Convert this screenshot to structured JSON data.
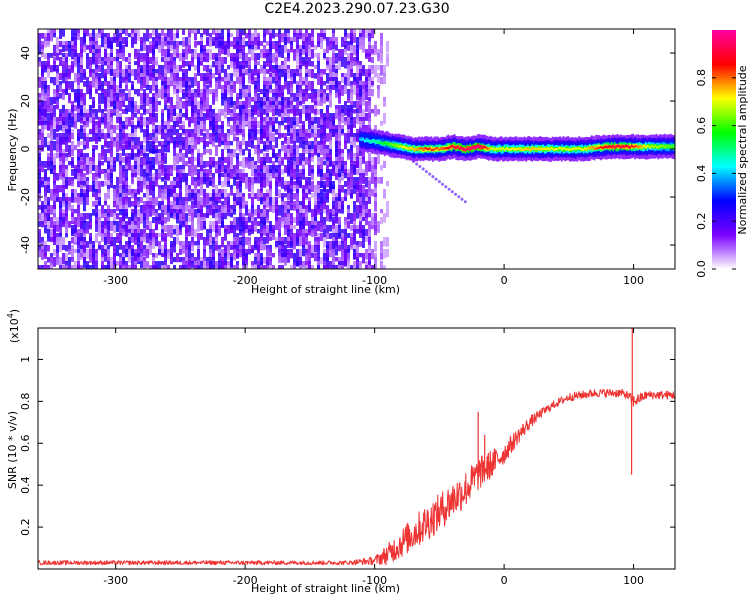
{
  "figure": {
    "title": "C2E4.2023.290.07.23.G30"
  },
  "chart_data": [
    {
      "type": "heatmap",
      "title": "",
      "xlabel": "Height of straight line (km)",
      "ylabel": "Frequency (Hz)",
      "xlim": [
        -360,
        132
      ],
      "ylim": [
        -50,
        50
      ],
      "xticks": [
        -300,
        -200,
        -100,
        0,
        100
      ],
      "yticks": [
        -40,
        -20,
        0,
        20,
        40
      ],
      "colorbar": {
        "label": "Normalized spectral amplitude",
        "range": [
          0,
          1
        ],
        "ticks": [
          0.0,
          0.2,
          0.4,
          0.6,
          0.8
        ],
        "colors": [
          "#ffffff",
          "#7a00ff",
          "#0000ff",
          "#00ffff",
          "#00ff00",
          "#ffff00",
          "#ff0000",
          "#ff00a0"
        ]
      },
      "noise_region": {
        "x": [
          -360,
          -90
        ],
        "y": [
          -50,
          50
        ],
        "amplitude": [
          0.05,
          0.25
        ]
      },
      "signal_ridge": {
        "x": [
          -112,
          -100,
          -90,
          -80,
          -70,
          -60,
          -50,
          -40,
          -30,
          -20,
          -10,
          0,
          20,
          40,
          60,
          80,
          95,
          110,
          132
        ],
        "frequency": [
          4,
          3,
          2,
          1,
          0,
          0,
          0,
          1,
          0,
          1,
          0,
          0,
          0,
          0,
          0,
          1,
          1,
          1,
          1
        ],
        "amplitude": [
          0.4,
          0.5,
          0.6,
          0.7,
          0.75,
          0.85,
          0.8,
          0.9,
          0.95,
          1.0,
          0.7,
          0.7,
          0.75,
          0.7,
          0.7,
          0.9,
          0.9,
          0.7,
          0.6
        ]
      },
      "side_branch": {
        "x": [
          -80,
          -30
        ],
        "frequency": [
          -1,
          -22
        ]
      }
    },
    {
      "type": "line",
      "title": "",
      "xlabel": "Height of straight line (km)",
      "ylabel": "SNR (10 * v/v)",
      "y_multiplier": "(x10",
      "y_multiplier_exp": "4",
      "y_multiplier_close": ")",
      "xlim": [
        -360,
        132
      ],
      "ylim": [
        0,
        1.15
      ],
      "xticks": [
        -300,
        -200,
        -100,
        0,
        100
      ],
      "yticks": [
        0.2,
        0.4,
        0.6,
        0.8,
        1
      ],
      "color": "#ee3333",
      "series": [
        {
          "x": [
            -360,
            -300,
            -200,
            -120,
            -100,
            -90,
            -80,
            -70,
            -60,
            -50,
            -40,
            -30,
            -20,
            -10,
            0,
            10,
            20,
            30,
            40,
            50,
            60,
            70,
            80,
            90,
            95,
            100,
            110,
            120,
            132
          ],
          "y": [
            0.03,
            0.03,
            0.03,
            0.03,
            0.04,
            0.07,
            0.12,
            0.17,
            0.22,
            0.27,
            0.33,
            0.38,
            0.45,
            0.5,
            0.55,
            0.63,
            0.7,
            0.75,
            0.79,
            0.82,
            0.83,
            0.84,
            0.84,
            0.84,
            0.83,
            0.8,
            0.83,
            0.83,
            0.83
          ],
          "noise": [
            0.01,
            0.01,
            0.01,
            0.01,
            0.02,
            0.05,
            0.07,
            0.08,
            0.09,
            0.09,
            0.09,
            0.09,
            0.08,
            0.07,
            0.05,
            0.04,
            0.03,
            0.02,
            0.02,
            0.02,
            0.02,
            0.02,
            0.02,
            0.02,
            0.02,
            0.03,
            0.02,
            0.02,
            0.02
          ]
        }
      ],
      "spikes": [
        {
          "x": -20,
          "y": 0.75
        },
        {
          "x": -15,
          "y": 0.64
        },
        {
          "x": 99,
          "y": 1.15
        },
        {
          "x": 98.5,
          "y": 0.45
        }
      ]
    }
  ]
}
